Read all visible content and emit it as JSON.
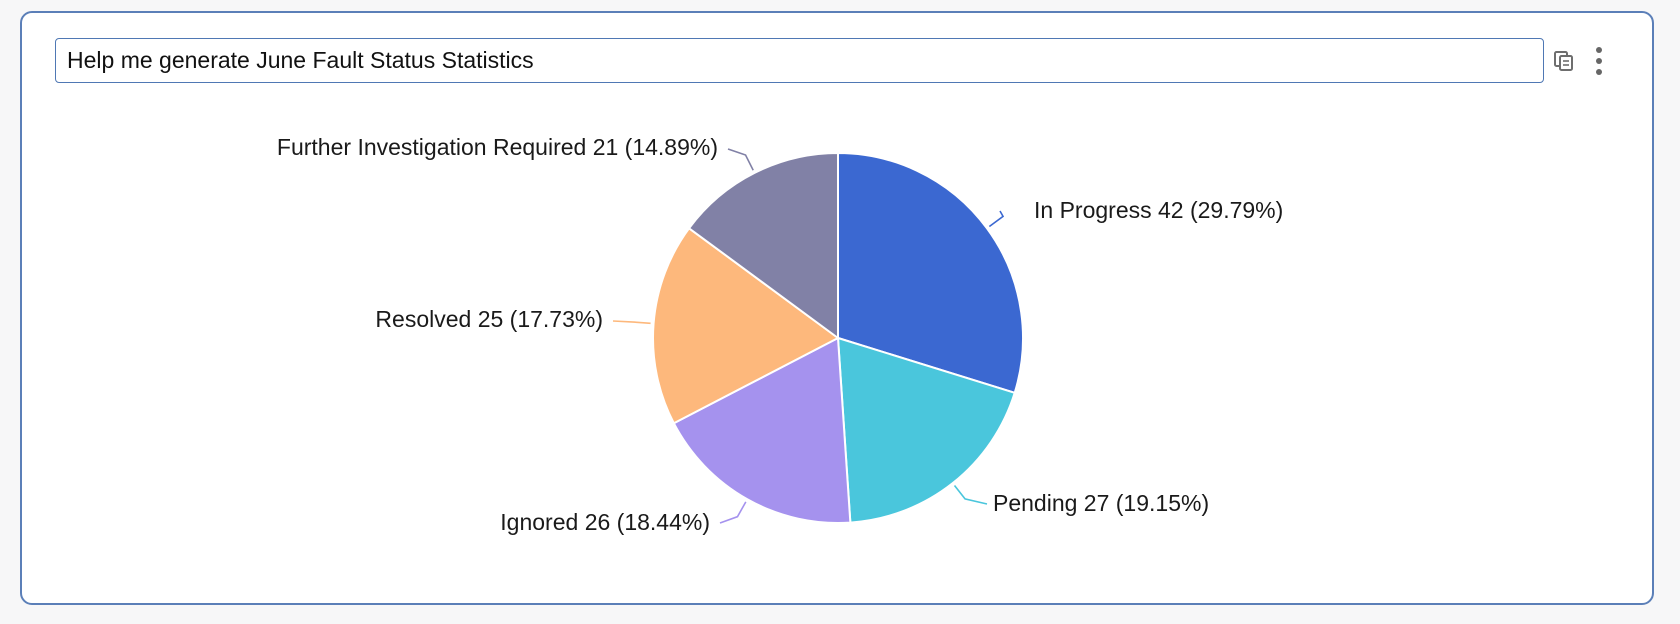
{
  "prompt": {
    "text": "Help me generate June Fault Status Statistics"
  },
  "toolbar": {
    "copy_icon": "copy-icon",
    "more_icon": "more-vertical-icon"
  },
  "chart_data": {
    "type": "pie",
    "title": "",
    "start_angle_deg": 0,
    "direction": "clockwise",
    "slice_border_color": "#ffffff",
    "slices": [
      {
        "label": "In Progress",
        "value": 42,
        "percent": "29.79%",
        "color": "#3b68d1",
        "display": "In Progress 42 (29.79%)"
      },
      {
        "label": "Pending",
        "value": 27,
        "percent": "19.15%",
        "color": "#4ac6dc",
        "display": "Pending 27 (19.15%)"
      },
      {
        "label": "Ignored",
        "value": 26,
        "percent": "18.44%",
        "color": "#a592ee",
        "display": "Ignored 26 (18.44%)"
      },
      {
        "label": "Resolved",
        "value": 25,
        "percent": "17.73%",
        "color": "#fdb87c",
        "display": "Resolved 25 (17.73%)"
      },
      {
        "label": "Further Investigation Required",
        "value": 21,
        "percent": "14.89%",
        "color": "#8181a6",
        "display": "Further Investigation Required 21 (14.89%)"
      }
    ]
  }
}
